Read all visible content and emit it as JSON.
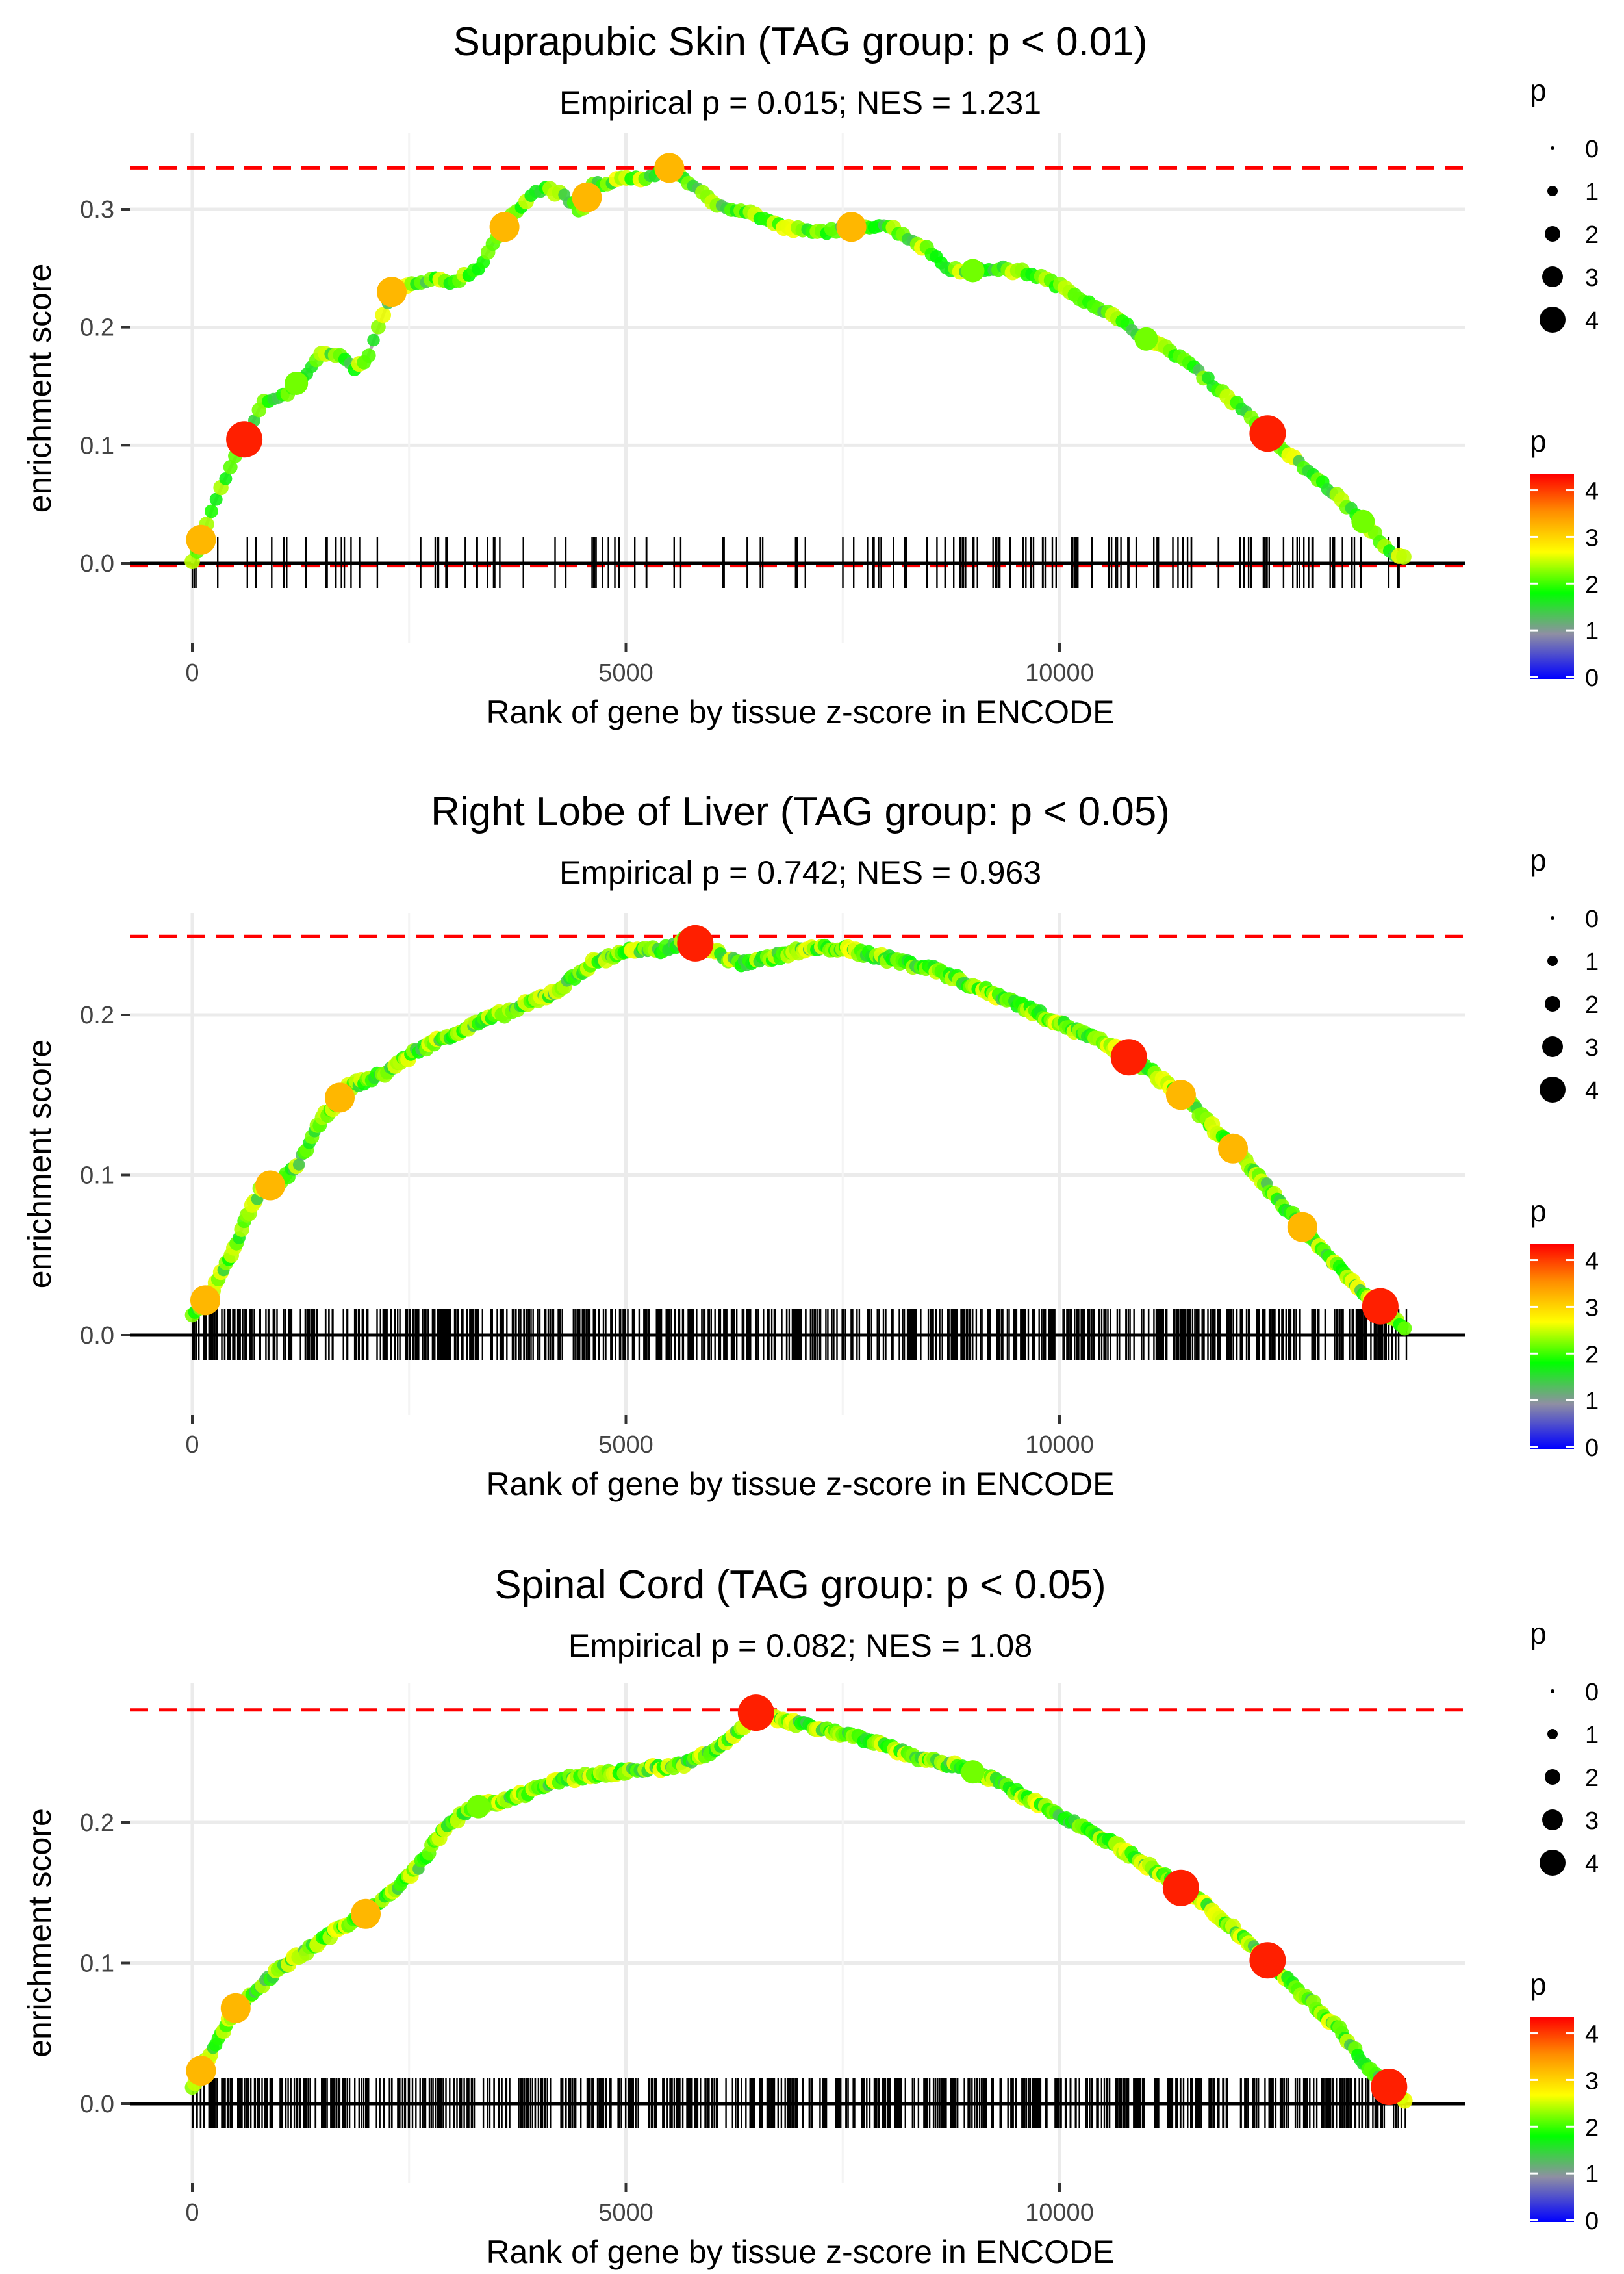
{
  "chart_data": [
    {
      "type": "line",
      "title": "Suprapubic Skin (TAG group: p < 0.01)",
      "subtitle": "Empirical p = 0.015; NES = 1.231",
      "xlabel": "Rank of gene by tissue z-score in ENCODE",
      "ylabel": "enrichment score",
      "xlim": [
        -700,
        14800
      ],
      "ylim": [
        -0.012,
        0.345
      ],
      "xticks": [
        0,
        5000,
        10000
      ],
      "xtick_labels": [
        "0",
        "5000",
        "10000"
      ],
      "yticks": [
        0.0,
        0.1,
        0.2,
        0.3
      ],
      "ytick_labels": [
        "0.0",
        "0.1",
        "0.2",
        "0.3"
      ],
      "max_es_line": 0.335,
      "min_es_line": -0.002,
      "curve": [
        [
          0,
          0
        ],
        [
          100,
          0.02
        ],
        [
          250,
          0.05
        ],
        [
          400,
          0.075
        ],
        [
          600,
          0.105
        ],
        [
          800,
          0.135
        ],
        [
          1100,
          0.145
        ],
        [
          1300,
          0.16
        ],
        [
          1500,
          0.178
        ],
        [
          1700,
          0.175
        ],
        [
          1850,
          0.165
        ],
        [
          2000,
          0.17
        ],
        [
          2150,
          0.2
        ],
        [
          2300,
          0.23
        ],
        [
          2500,
          0.235
        ],
        [
          2800,
          0.24
        ],
        [
          3000,
          0.238
        ],
        [
          3300,
          0.25
        ],
        [
          3500,
          0.275
        ],
        [
          3700,
          0.295
        ],
        [
          3900,
          0.313
        ],
        [
          4100,
          0.318
        ],
        [
          4300,
          0.31
        ],
        [
          4500,
          0.297
        ],
        [
          4600,
          0.323
        ],
        [
          4800,
          0.32
        ],
        [
          5000,
          0.328
        ],
        [
          5200,
          0.325
        ],
        [
          5500,
          0.335
        ],
        [
          5700,
          0.325
        ],
        [
          6000,
          0.305
        ],
        [
          6400,
          0.298
        ],
        [
          6800,
          0.285
        ],
        [
          7200,
          0.28
        ],
        [
          7600,
          0.285
        ],
        [
          8000,
          0.287
        ],
        [
          8500,
          0.265
        ],
        [
          8700,
          0.25
        ],
        [
          9000,
          0.248
        ],
        [
          9300,
          0.25
        ],
        [
          9700,
          0.245
        ],
        [
          10000,
          0.235
        ],
        [
          10500,
          0.215
        ],
        [
          11000,
          0.19
        ],
        [
          11400,
          0.175
        ],
        [
          11800,
          0.15
        ],
        [
          12200,
          0.125
        ],
        [
          12600,
          0.095
        ],
        [
          13000,
          0.07
        ],
        [
          13300,
          0.05
        ],
        [
          13600,
          0.028
        ],
        [
          13800,
          0.01
        ],
        [
          14000,
          0.004
        ]
      ],
      "points_p": [
        [
          100,
          3
        ],
        [
          600,
          4
        ],
        [
          1200,
          2
        ],
        [
          2300,
          3
        ],
        [
          3600,
          3
        ],
        [
          4550,
          3
        ],
        [
          5500,
          3
        ],
        [
          7600,
          3
        ],
        [
          9000,
          2
        ],
        [
          11000,
          2
        ],
        [
          12400,
          4
        ],
        [
          13500,
          2
        ]
      ],
      "ticks_density": "sparse",
      "tick_count": 240
    },
    {
      "type": "line",
      "title": "Right Lobe of Liver (TAG group: p < 0.05)",
      "subtitle": "Empirical p = 0.742; NES = 0.963",
      "xlabel": "Rank of gene by tissue z-score in ENCODE",
      "ylabel": "enrichment score",
      "xlim": [
        -700,
        14800
      ],
      "ylim": [
        -0.012,
        0.258
      ],
      "xticks": [
        0,
        5000,
        10000
      ],
      "xtick_labels": [
        "0",
        "5000",
        "10000"
      ],
      "yticks": [
        0.0,
        0.1,
        0.2
      ],
      "ytick_labels": [
        "0.0",
        "0.1",
        "0.2"
      ],
      "max_es_line": 0.249,
      "min_es_line": 0.0,
      "curve": [
        [
          0,
          0.012
        ],
        [
          200,
          0.025
        ],
        [
          400,
          0.045
        ],
        [
          600,
          0.07
        ],
        [
          800,
          0.092
        ],
        [
          1000,
          0.095
        ],
        [
          1200,
          0.105
        ],
        [
          1500,
          0.135
        ],
        [
          1800,
          0.155
        ],
        [
          2200,
          0.163
        ],
        [
          2600,
          0.178
        ],
        [
          3000,
          0.188
        ],
        [
          3400,
          0.197
        ],
        [
          3800,
          0.205
        ],
        [
          4200,
          0.215
        ],
        [
          4600,
          0.232
        ],
        [
          5000,
          0.24
        ],
        [
          5400,
          0.24
        ],
        [
          5700,
          0.247
        ],
        [
          6000,
          0.24
        ],
        [
          6300,
          0.232
        ],
        [
          6600,
          0.235
        ],
        [
          7000,
          0.24
        ],
        [
          7400,
          0.242
        ],
        [
          7800,
          0.238
        ],
        [
          8200,
          0.233
        ],
        [
          8600,
          0.228
        ],
        [
          9000,
          0.218
        ],
        [
          9400,
          0.21
        ],
        [
          9800,
          0.2
        ],
        [
          10200,
          0.19
        ],
        [
          10600,
          0.18
        ],
        [
          11000,
          0.167
        ],
        [
          11400,
          0.15
        ],
        [
          11800,
          0.128
        ],
        [
          12200,
          0.105
        ],
        [
          12600,
          0.08
        ],
        [
          13000,
          0.055
        ],
        [
          13400,
          0.032
        ],
        [
          13700,
          0.018
        ],
        [
          14000,
          0.005
        ]
      ],
      "points_p": [
        [
          150,
          3
        ],
        [
          900,
          3
        ],
        [
          1700,
          3
        ],
        [
          5800,
          4
        ],
        [
          10800,
          4
        ],
        [
          11400,
          3
        ],
        [
          12000,
          3
        ],
        [
          12800,
          3
        ],
        [
          13700,
          4
        ]
      ],
      "ticks_density": "dense",
      "tick_count": 620
    },
    {
      "type": "line",
      "title": "Spinal Cord (TAG group: p < 0.05)",
      "subtitle": "Empirical p = 0.082; NES = 1.08",
      "xlabel": "Rank of gene by tissue z-score in ENCODE",
      "ylabel": "enrichment score",
      "xlim": [
        -700,
        14800
      ],
      "ylim": [
        -0.01,
        0.29
      ],
      "xticks": [
        0,
        5000,
        10000
      ],
      "xtick_labels": [
        "0",
        "5000",
        "10000"
      ],
      "yticks": [
        0.0,
        0.1,
        0.2
      ],
      "ytick_labels": [
        "0.0",
        "0.1",
        "0.2"
      ],
      "max_es_line": 0.28,
      "min_es_line": 0.0,
      "curve": [
        [
          0,
          0.012
        ],
        [
          200,
          0.035
        ],
        [
          500,
          0.068
        ],
        [
          800,
          0.085
        ],
        [
          1100,
          0.1
        ],
        [
          1400,
          0.112
        ],
        [
          1700,
          0.125
        ],
        [
          2000,
          0.135
        ],
        [
          2300,
          0.15
        ],
        [
          2600,
          0.168
        ],
        [
          2900,
          0.195
        ],
        [
          3200,
          0.21
        ],
        [
          3600,
          0.215
        ],
        [
          4000,
          0.225
        ],
        [
          4400,
          0.232
        ],
        [
          4800,
          0.235
        ],
        [
          5200,
          0.238
        ],
        [
          5600,
          0.24
        ],
        [
          6000,
          0.25
        ],
        [
          6300,
          0.265
        ],
        [
          6500,
          0.278
        ],
        [
          6800,
          0.272
        ],
        [
          7200,
          0.268
        ],
        [
          7600,
          0.262
        ],
        [
          8000,
          0.255
        ],
        [
          8400,
          0.245
        ],
        [
          8800,
          0.24
        ],
        [
          9200,
          0.232
        ],
        [
          9600,
          0.218
        ],
        [
          10000,
          0.205
        ],
        [
          10400,
          0.193
        ],
        [
          10800,
          0.178
        ],
        [
          11200,
          0.162
        ],
        [
          11600,
          0.145
        ],
        [
          12000,
          0.125
        ],
        [
          12400,
          0.102
        ],
        [
          12800,
          0.078
        ],
        [
          13200,
          0.055
        ],
        [
          13500,
          0.03
        ],
        [
          13800,
          0.012
        ],
        [
          14000,
          0.003
        ]
      ],
      "points_p": [
        [
          100,
          3
        ],
        [
          500,
          3
        ],
        [
          2000,
          3
        ],
        [
          3300,
          2
        ],
        [
          6500,
          4
        ],
        [
          9000,
          2
        ],
        [
          11400,
          4
        ],
        [
          12400,
          4
        ],
        [
          13800,
          4
        ]
      ],
      "ticks_density": "dense",
      "tick_count": 640
    }
  ],
  "legend": {
    "size_title": "p",
    "size_labels": [
      "0",
      "1",
      "2",
      "3",
      "4"
    ],
    "color_title": "p",
    "color_labels": [
      "0",
      "1",
      "2",
      "3",
      "4"
    ]
  },
  "colors": {
    "max_line": "#ff0000",
    "curve": "#aaaaaa",
    "grid": "#ebebeb",
    "gradient": [
      "#0000ff",
      "#8f8fa3",
      "#00ff00",
      "#ffff00",
      "#ff8c00",
      "#ff0000"
    ]
  }
}
